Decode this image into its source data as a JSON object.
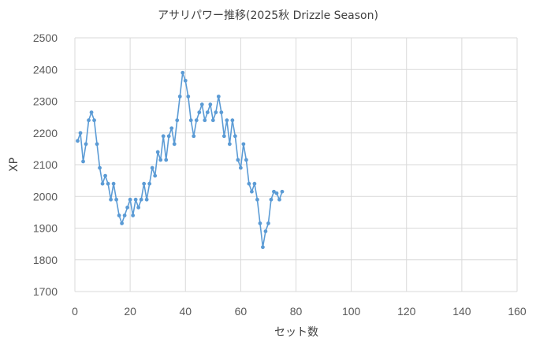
{
  "chart_data": {
    "type": "line",
    "title": "アサリパワー推移(2025秋 Drizzle Season)",
    "xlabel": "セット数",
    "ylabel": "XP",
    "xlim": [
      0,
      160
    ],
    "ylim": [
      1700,
      2500
    ],
    "xticks": [
      0,
      20,
      40,
      60,
      80,
      100,
      120,
      140,
      160
    ],
    "yticks": [
      1700,
      1800,
      1900,
      2000,
      2100,
      2200,
      2300,
      2400,
      2500
    ],
    "grid": true,
    "legend": "none",
    "color": "#5b9bd5",
    "series": [
      {
        "x": [
          1,
          2,
          3,
          4,
          5,
          6,
          7,
          8,
          9,
          10,
          11,
          12,
          13,
          14,
          15,
          16,
          17,
          18,
          19,
          20,
          21,
          22,
          23,
          24,
          25,
          26,
          27,
          28,
          29,
          30,
          31,
          32,
          33,
          34,
          35,
          36,
          37,
          38,
          39,
          40,
          41,
          42,
          43,
          44,
          45,
          46,
          47,
          48,
          49,
          50,
          51,
          52,
          53,
          54,
          55,
          56,
          57,
          58,
          59,
          60,
          61,
          62,
          63,
          64,
          65,
          66,
          67,
          68,
          69,
          70,
          71,
          72,
          73,
          74,
          75
        ],
        "values": [
          2175,
          2200,
          2110,
          2165,
          2240,
          2265,
          2240,
          2165,
          2090,
          2040,
          2065,
          2040,
          1990,
          2040,
          1990,
          1940,
          1915,
          1940,
          1965,
          1990,
          1940,
          1990,
          1965,
          1990,
          2040,
          1990,
          2040,
          2090,
          2065,
          2140,
          2115,
          2190,
          2115,
          2190,
          2215,
          2165,
          2240,
          2315,
          2390,
          2365,
          2315,
          2240,
          2190,
          2240,
          2265,
          2290,
          2240,
          2265,
          2290,
          2240,
          2265,
          2315,
          2265,
          2190,
          2240,
          2165,
          2240,
          2190,
          2115,
          2090,
          2165,
          2115,
          2040,
          2015,
          2040,
          1990,
          1915,
          1840,
          1890,
          1915,
          1990,
          2015,
          2010,
          1990,
          2015
        ]
      }
    ]
  }
}
